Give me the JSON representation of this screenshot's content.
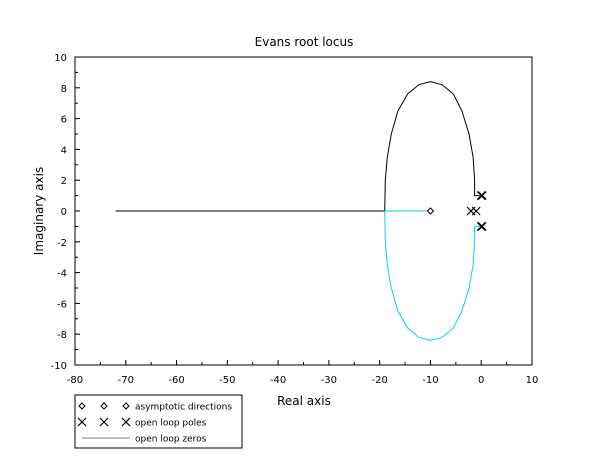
{
  "chart_data": {
    "type": "line",
    "title": "Evans root locus",
    "xlabel": "Real axis",
    "ylabel": "Imaginary axis",
    "xlim": [
      -80,
      10
    ],
    "ylim": [
      -10,
      10
    ],
    "xticks": [
      "-80",
      "-70",
      "-60",
      "-50",
      "-40",
      "-30",
      "-20",
      "-10",
      "0",
      "10"
    ],
    "yticks": [
      "-10",
      "-8",
      "-6",
      "-4",
      "-2",
      "0",
      "2",
      "4",
      "6",
      "8",
      "10"
    ],
    "grid": false,
    "legend_position": "below-left",
    "legend": [
      {
        "label": "asymptotic directions",
        "marker": "diamond"
      },
      {
        "label": "open loop poles",
        "marker": "x"
      },
      {
        "label": "open loop zeros",
        "marker": "line"
      }
    ],
    "colors": {
      "branch_upper": "#000000",
      "branch_lower": "#00d6e6",
      "legend_line": "#7f7f7f"
    },
    "series": [
      {
        "color": "#000000",
        "points": [
          [
            -72,
            0
          ],
          [
            -19,
            0
          ],
          [
            -18.9,
            2.0
          ],
          [
            -18.5,
            3.5
          ],
          [
            -17.7,
            5.0
          ],
          [
            -16.4,
            6.5
          ],
          [
            -14.5,
            7.6
          ],
          [
            -12.3,
            8.2
          ],
          [
            -10,
            8.4
          ],
          [
            -7.7,
            8.2
          ],
          [
            -5.5,
            7.6
          ],
          [
            -3.8,
            6.5
          ],
          [
            -2.4,
            5.0
          ],
          [
            -1.6,
            3.5
          ],
          [
            -1.3,
            2.0
          ],
          [
            -1.3,
            1.0
          ],
          [
            -0.3,
            1.0
          ]
        ]
      },
      {
        "color": "#00d6e6",
        "points": [
          [
            -10,
            0
          ],
          [
            -19,
            0
          ],
          [
            -18.9,
            -2.0
          ],
          [
            -18.5,
            -3.5
          ],
          [
            -17.7,
            -5.0
          ],
          [
            -16.4,
            -6.5
          ],
          [
            -14.5,
            -7.6
          ],
          [
            -12.3,
            -8.2
          ],
          [
            -10,
            -8.4
          ],
          [
            -7.7,
            -8.2
          ],
          [
            -5.5,
            -7.6
          ],
          [
            -3.8,
            -6.5
          ],
          [
            -2.4,
            -5.0
          ],
          [
            -1.6,
            -3.5
          ],
          [
            -1.3,
            -2.0
          ],
          [
            -1.3,
            -1.0
          ],
          [
            -0.3,
            -1.0
          ]
        ]
      }
    ],
    "asymptote_centers": [
      [
        -10,
        0
      ]
    ],
    "open_loop_poles": [
      [
        -2,
        0
      ],
      [
        -1,
        0
      ],
      [
        0,
        1
      ],
      [
        0.2,
        1
      ],
      [
        0,
        -1
      ],
      [
        0.2,
        -1
      ]
    ]
  }
}
